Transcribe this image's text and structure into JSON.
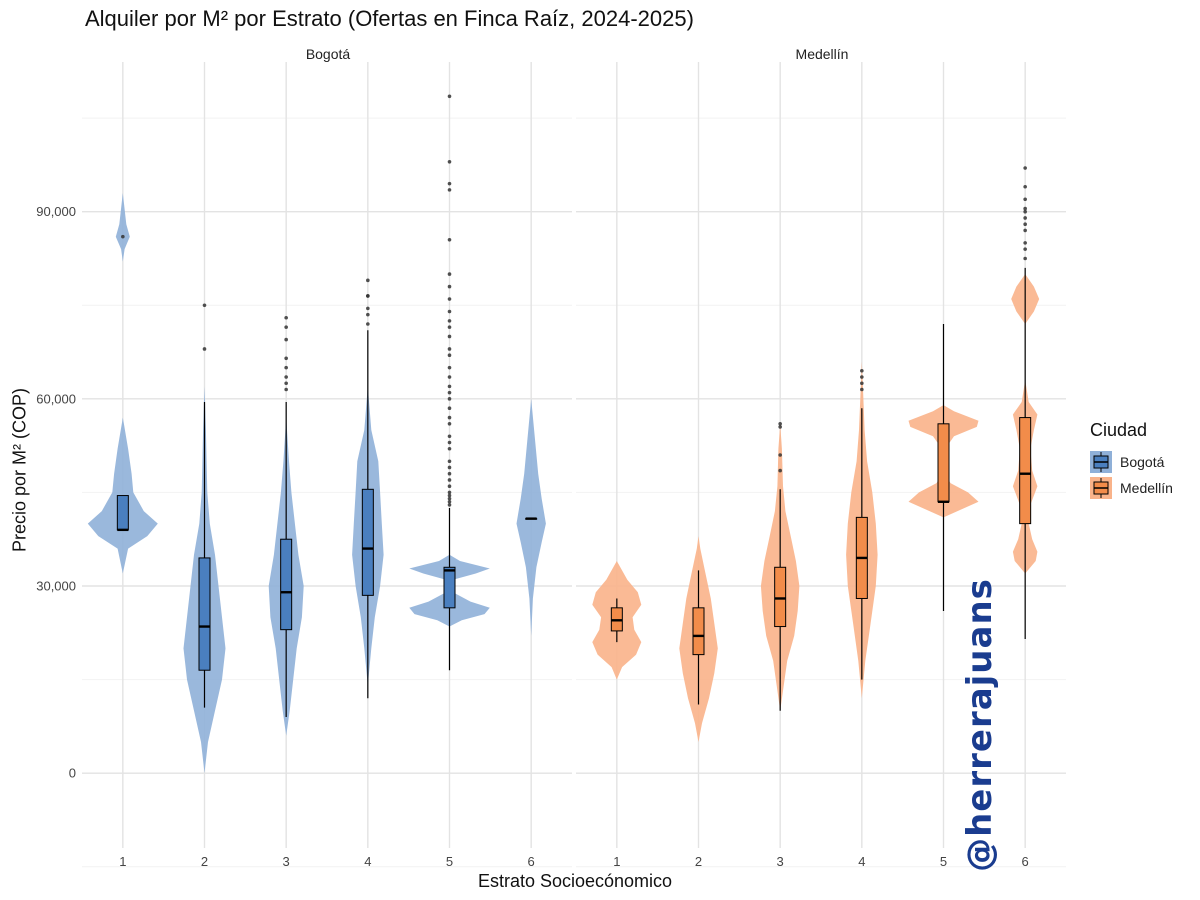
{
  "chart_data": {
    "type": "violin",
    "title": "Alquiler por M² por Estrato (Ofertas en Finca Raíz, 2024-2025)",
    "xlabel": "Estrato Socioecónomico",
    "ylabel": "Precio por M² (COP)",
    "ylim": [
      -12000,
      114000
    ],
    "y_ticks": [
      0,
      30000,
      60000,
      90000
    ],
    "y_tick_labels": [
      "0",
      "30,000",
      "60,000",
      "90,000"
    ],
    "categories": [
      "1",
      "2",
      "3",
      "4",
      "5",
      "6"
    ],
    "grid": true,
    "legend": {
      "title": "Ciudad",
      "placement": "right",
      "entries": [
        {
          "label": "Bogotá",
          "color": "#4a7fbf"
        },
        {
          "label": "Medellín",
          "color": "#f28c4a"
        }
      ]
    },
    "annotation": "@herrerajuans",
    "facets": [
      {
        "name": "Bogotá",
        "fill": "#4a7fbf",
        "violin_fill": "#8fb0d8",
        "series": [
          {
            "estrato": "1",
            "boxplot": {
              "whisker_low": 39000,
              "q1": 39000,
              "median": 39000,
              "q3": 44500,
              "whisker_high": 44500
            },
            "outliers": [
              86000
            ],
            "density": [
              [
                32000,
                0
              ],
              [
                36000,
                0.15
              ],
              [
                38000,
                0.7
              ],
              [
                40000,
                1
              ],
              [
                42000,
                0.6
              ],
              [
                45000,
                0.3
              ],
              [
                48000,
                0.25
              ],
              [
                52000,
                0.15
              ],
              [
                56000,
                0.03
              ],
              [
                57000,
                0
              ],
              [
                82000,
                0
              ],
              [
                84000,
                0.05
              ],
              [
                86000,
                0.2
              ],
              [
                88000,
                0.1
              ],
              [
                93000,
                0
              ]
            ]
          },
          {
            "estrato": "2",
            "boxplot": {
              "whisker_low": 10500,
              "q1": 16500,
              "median": 23500,
              "q3": 34500,
              "whisker_high": 59500
            },
            "outliers": [
              68000,
              75000
            ],
            "density": [
              [
                0,
                0
              ],
              [
                5000,
                0.1
              ],
              [
                10000,
                0.3
              ],
              [
                15000,
                0.5
              ],
              [
                20000,
                0.6
              ],
              [
                25000,
                0.5
              ],
              [
                30000,
                0.4
              ],
              [
                35000,
                0.3
              ],
              [
                40000,
                0.15
              ],
              [
                45000,
                0.08
              ],
              [
                55000,
                0.04
              ],
              [
                62000,
                0
              ]
            ]
          },
          {
            "estrato": "3",
            "boxplot": {
              "whisker_low": 9000,
              "q1": 23000,
              "median": 29000,
              "q3": 37500,
              "whisker_high": 59500
            },
            "outliers": [
              61500,
              62500,
              63500,
              65000,
              66500,
              69500,
              71500,
              73000
            ],
            "density": [
              [
                6000,
                0
              ],
              [
                10000,
                0.1
              ],
              [
                15000,
                0.2
              ],
              [
                20000,
                0.3
              ],
              [
                25000,
                0.45
              ],
              [
                30000,
                0.5
              ],
              [
                35000,
                0.35
              ],
              [
                40000,
                0.25
              ],
              [
                45000,
                0.15
              ],
              [
                50000,
                0.08
              ],
              [
                57000,
                0
              ]
            ]
          },
          {
            "estrato": "4",
            "boxplot": {
              "whisker_low": 12000,
              "q1": 28500,
              "median": 36000,
              "q3": 45500,
              "whisker_high": 71000
            },
            "outliers": [
              72000,
              73500,
              74500,
              76500,
              76500,
              79000
            ],
            "density": [
              [
                14000,
                0
              ],
              [
                20000,
                0.1
              ],
              [
                25000,
                0.2
              ],
              [
                30000,
                0.35
              ],
              [
                35000,
                0.45
              ],
              [
                40000,
                0.4
              ],
              [
                45000,
                0.35
              ],
              [
                50000,
                0.3
              ],
              [
                55000,
                0.1
              ],
              [
                62000,
                0
              ]
            ]
          },
          {
            "estrato": "5",
            "boxplot": {
              "whisker_low": 16500,
              "q1": 26500,
              "median": 32500,
              "q3": 33000,
              "whisker_high": 42500
            },
            "outliers": [
              43000,
              43500,
              44000,
              44500,
              45000,
              46000,
              47000,
              48000,
              49000,
              50000,
              52000,
              53000,
              54000,
              56000,
              57000,
              58500,
              60000,
              61000,
              62000,
              63500,
              65000,
              67000,
              68000,
              70000,
              71500,
              72500,
              74000,
              76000,
              78000,
              80000,
              85500,
              93500,
              94500,
              98000,
              108500
            ],
            "density": [
              [
                23500,
                0
              ],
              [
                24500,
                0.35
              ],
              [
                25500,
                1
              ],
              [
                26500,
                1.15
              ],
              [
                27500,
                0.6
              ],
              [
                29000,
                0.1
              ],
              [
                31000,
                0.1
              ],
              [
                32000,
                0.75
              ],
              [
                32800,
                1.15
              ],
              [
                34000,
                0.3
              ],
              [
                35000,
                0
              ]
            ]
          },
          {
            "estrato": "6",
            "boxplot": {
              "whisker_low": 40800,
              "q1": 40800,
              "median": 40800,
              "q3": 40800,
              "whisker_high": 40800
            },
            "outliers": [],
            "density": [
              [
                22000,
                0
              ],
              [
                28000,
                0.05
              ],
              [
                33000,
                0.15
              ],
              [
                37000,
                0.3
              ],
              [
                40000,
                0.42
              ],
              [
                44000,
                0.3
              ],
              [
                48000,
                0.2
              ],
              [
                54000,
                0.1
              ],
              [
                60000,
                0
              ]
            ]
          }
        ]
      },
      {
        "name": "Medellín",
        "fill": "#f28c4a",
        "violin_fill": "#f9b38a",
        "series": [
          {
            "estrato": "1",
            "boxplot": {
              "whisker_low": 21000,
              "q1": 22800,
              "median": 24500,
              "q3": 26500,
              "whisker_high": 28000
            },
            "outliers": [],
            "density": [
              [
                15000,
                0
              ],
              [
                17000,
                0.15
              ],
              [
                19000,
                0.55
              ],
              [
                21000,
                0.7
              ],
              [
                23000,
                0.5
              ],
              [
                25000,
                0.45
              ],
              [
                27000,
                0.7
              ],
              [
                29000,
                0.6
              ],
              [
                31000,
                0.3
              ],
              [
                33000,
                0.1
              ],
              [
                34000,
                0
              ]
            ]
          },
          {
            "estrato": "2",
            "boxplot": {
              "whisker_low": 11000,
              "q1": 19000,
              "median": 22000,
              "q3": 26500,
              "whisker_high": 32500
            },
            "outliers": [],
            "density": [
              [
                5000,
                0
              ],
              [
                8000,
                0.1
              ],
              [
                12000,
                0.3
              ],
              [
                16000,
                0.45
              ],
              [
                20000,
                0.55
              ],
              [
                24000,
                0.45
              ],
              [
                28000,
                0.35
              ],
              [
                32000,
                0.2
              ],
              [
                36000,
                0.05
              ],
              [
                38000,
                0
              ]
            ]
          },
          {
            "estrato": "3",
            "boxplot": {
              "whisker_low": 10000,
              "q1": 23500,
              "median": 28000,
              "q3": 33000,
              "whisker_high": 45500
            },
            "outliers": [
              48500,
              51000,
              55500,
              56000
            ],
            "density": [
              [
                10000,
                0
              ],
              [
                14000,
                0.1
              ],
              [
                18000,
                0.2
              ],
              [
                22000,
                0.4
              ],
              [
                26000,
                0.5
              ],
              [
                30000,
                0.55
              ],
              [
                34000,
                0.45
              ],
              [
                38000,
                0.3
              ],
              [
                42000,
                0.15
              ],
              [
                46000,
                0.08
              ],
              [
                52000,
                0.05
              ],
              [
                56000,
                0
              ]
            ]
          },
          {
            "estrato": "4",
            "boxplot": {
              "whisker_low": 15000,
              "q1": 28000,
              "median": 34500,
              "q3": 41000,
              "whisker_high": 58500
            },
            "outliers": [
              61500,
              62500,
              63500,
              64500
            ],
            "density": [
              [
                12000,
                0
              ],
              [
                18000,
                0.1
              ],
              [
                24000,
                0.25
              ],
              [
                30000,
                0.4
              ],
              [
                35000,
                0.45
              ],
              [
                40000,
                0.4
              ],
              [
                45000,
                0.3
              ],
              [
                50000,
                0.15
              ],
              [
                55000,
                0.08
              ],
              [
                62000,
                0.03
              ],
              [
                66000,
                0
              ]
            ]
          },
          {
            "estrato": "5",
            "boxplot": {
              "whisker_low": 26000,
              "q1": 43500,
              "median": 43500,
              "q3": 56000,
              "whisker_high": 72000
            },
            "outliers": [],
            "density": [
              [
                41000,
                0
              ],
              [
                42500,
                0.6
              ],
              [
                43500,
                1
              ],
              [
                45000,
                0.7
              ],
              [
                46500,
                0.2
              ],
              [
                48000,
                0.05
              ],
              [
                52000,
                0.05
              ],
              [
                54000,
                0.3
              ],
              [
                55500,
                0.95
              ],
              [
                56500,
                1
              ],
              [
                58000,
                0.3
              ],
              [
                59000,
                0
              ]
            ]
          },
          {
            "estrato": "6",
            "boxplot": {
              "whisker_low": 21500,
              "q1": 40000,
              "median": 48000,
              "q3": 57000,
              "whisker_high": 81000
            },
            "outliers": [
              82500,
              84000,
              85000,
              87000,
              88000,
              89000,
              90000,
              90500,
              92000,
              94000,
              97000
            ],
            "density": [
              [
                32000,
                0
              ],
              [
                34000,
                0.3
              ],
              [
                35500,
                0.35
              ],
              [
                37500,
                0.2
              ],
              [
                40000,
                0.1
              ],
              [
                43000,
                0.15
              ],
              [
                46000,
                0.35
              ],
              [
                48500,
                0.2
              ],
              [
                52000,
                0.15
              ],
              [
                55000,
                0.25
              ],
              [
                57500,
                0.35
              ],
              [
                59500,
                0.1
              ],
              [
                63000,
                0
              ],
              [
                72000,
                0
              ],
              [
                74000,
                0.25
              ],
              [
                76000,
                0.4
              ],
              [
                78000,
                0.25
              ],
              [
                80000,
                0
              ]
            ]
          }
        ]
      }
    ]
  }
}
